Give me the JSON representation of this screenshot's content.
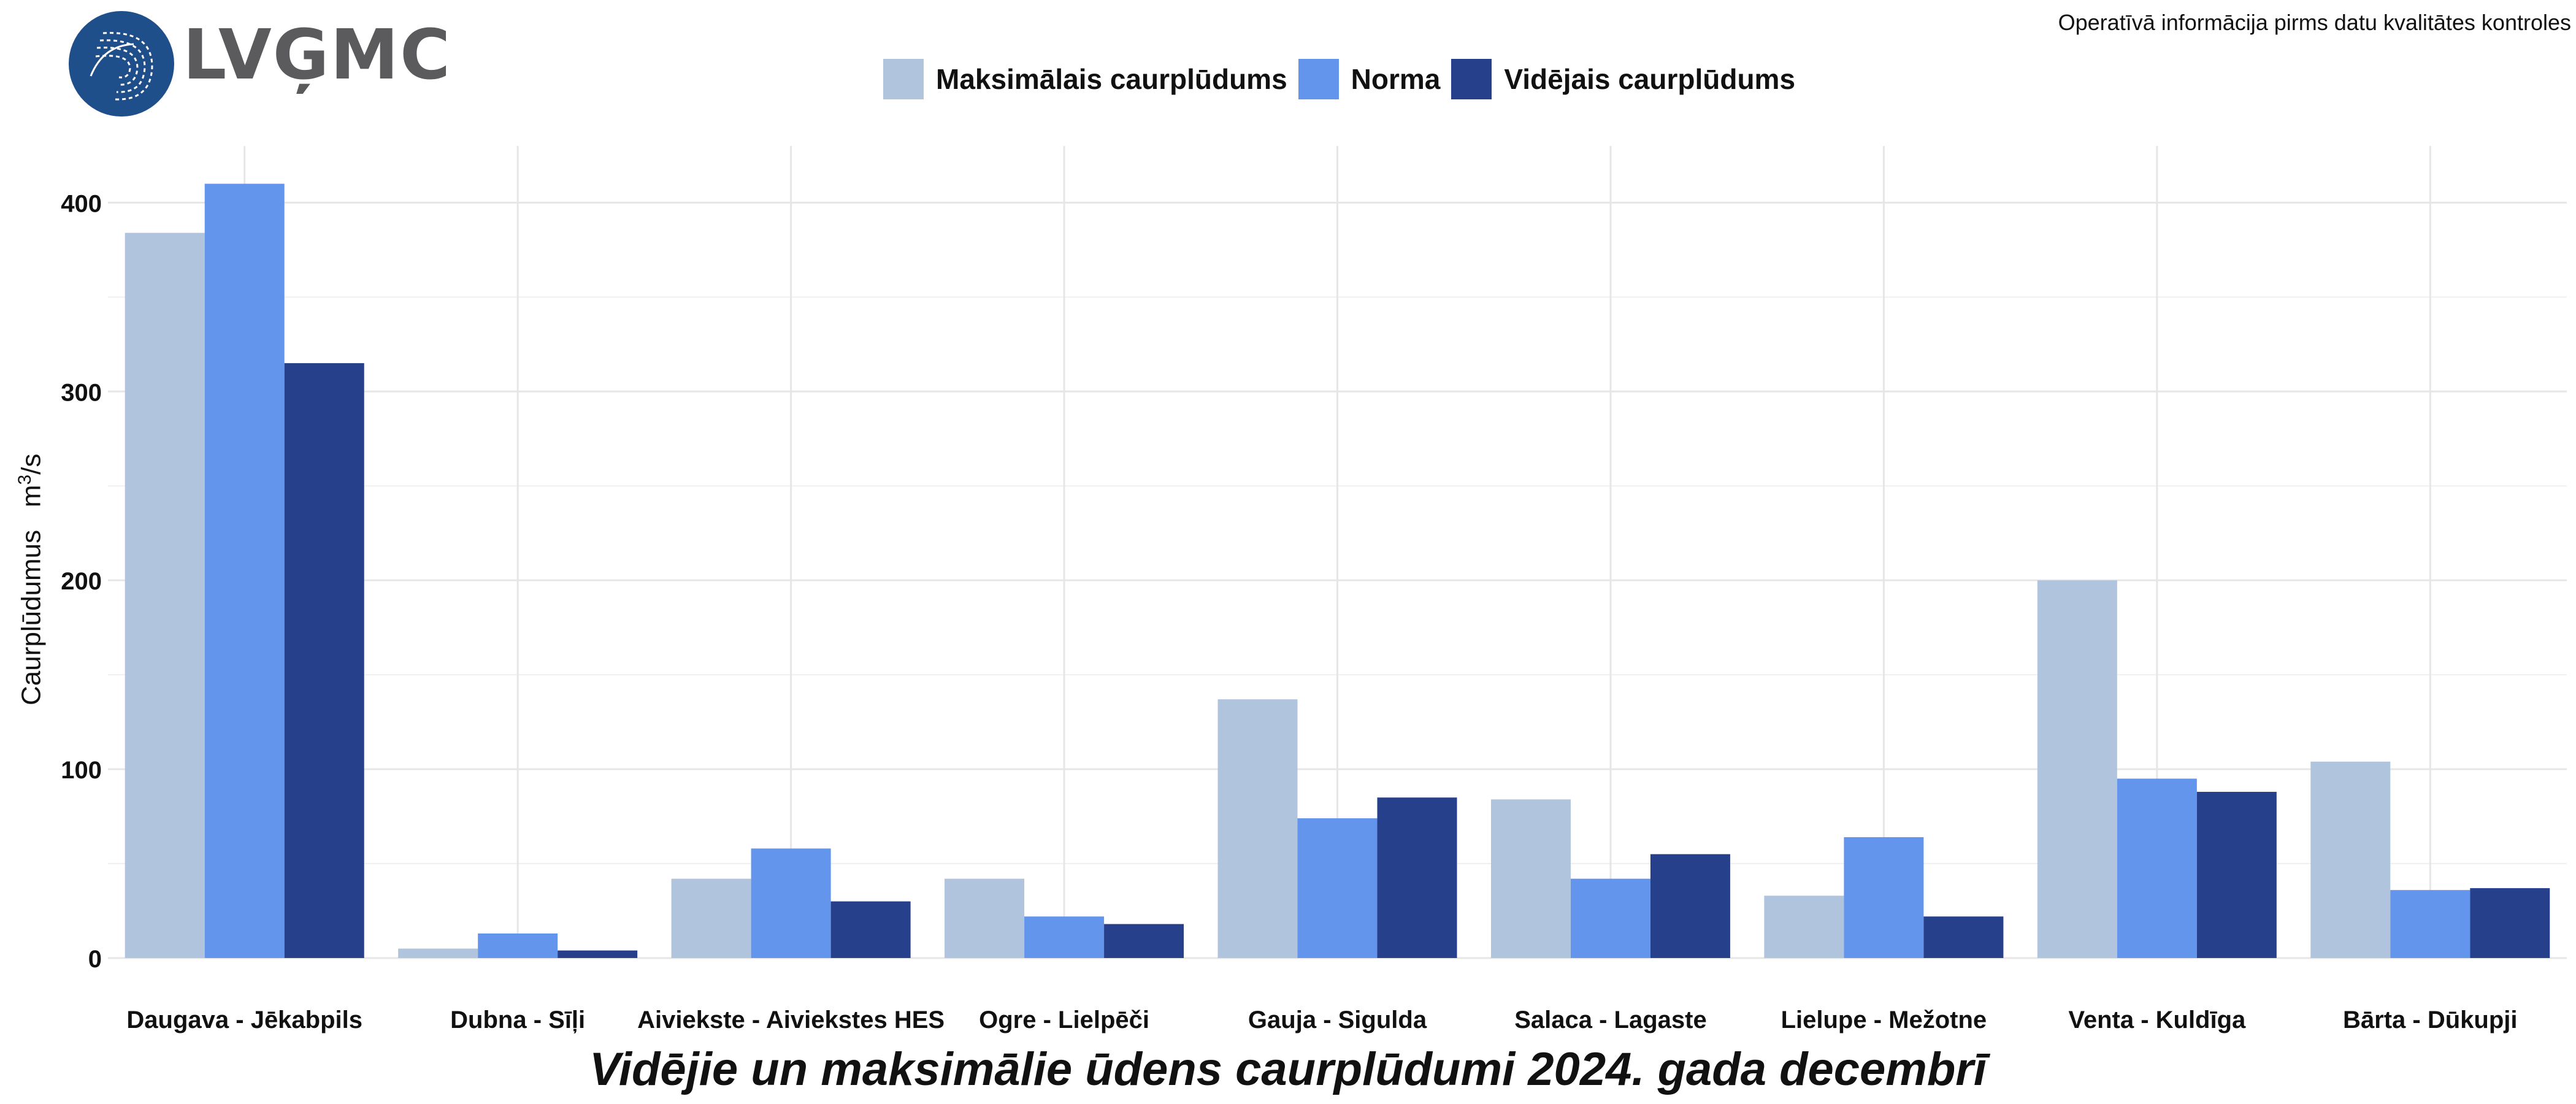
{
  "header": {
    "logo_text": "LVĢMC",
    "note": "Operatīvā informācija pirms datu kvalitātes kontroles"
  },
  "colors": {
    "max": "#b0c4de",
    "norm": "#6495ed",
    "avg": "#27408b",
    "logo_blue": "#1f4f8b",
    "grid": "#e6e6e6"
  },
  "legend": [
    {
      "label": "Maksimālais caurplūdums",
      "color": "#b0c4de"
    },
    {
      "label": "Norma",
      "color": "#6495ed"
    },
    {
      "label": "Vidējais caurplūdums",
      "color": "#27408b"
    }
  ],
  "chart_data": {
    "type": "bar",
    "title": "Vidējie un maksimālie ūdens caurplūdumi 2024. gada decembrī",
    "xlabel": "",
    "ylabel": "Caurplūdumus",
    "ylabel_unit": "m",
    "ylabel_unit_sup": "3",
    "ylabel_unit_suffix": "/s",
    "ylim": [
      0,
      430
    ],
    "yticks": [
      0,
      100,
      200,
      300,
      400
    ],
    "grid": true,
    "legend_position": "top",
    "categories": [
      "Daugava - Jēkabpils",
      "Dubna - Sīļi",
      "Aiviekste - Aiviekstes HES",
      "Ogre - Lielpēči",
      "Gauja - Sigulda",
      "Salaca - Lagaste",
      "Lielupe - Mežotne",
      "Venta - Kuldīga",
      "Bārta - Dūkupji"
    ],
    "series": [
      {
        "name": "Maksimālais caurplūdums",
        "color": "#b0c4de",
        "values": [
          384,
          5,
          42,
          42,
          137,
          84,
          33,
          200,
          104
        ]
      },
      {
        "name": "Norma",
        "color": "#6495ed",
        "values": [
          410,
          13,
          58,
          22,
          74,
          42,
          64,
          95,
          36
        ]
      },
      {
        "name": "Vidējais caurplūdums",
        "color": "#27408b",
        "values": [
          315,
          4,
          30,
          18,
          85,
          55,
          22,
          88,
          37
        ]
      }
    ]
  }
}
